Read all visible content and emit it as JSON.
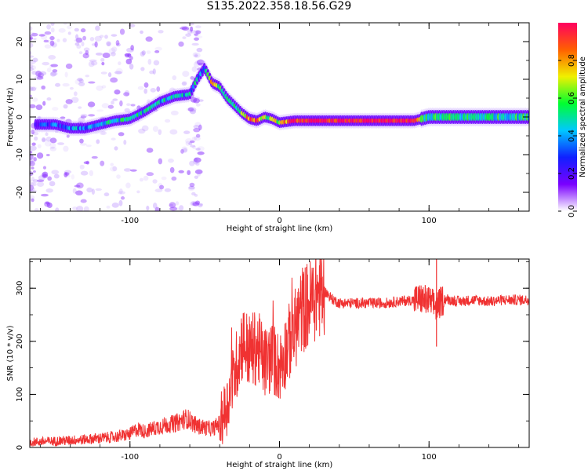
{
  "title": "S135.2022.358.18.56.G29",
  "colors": {
    "snr_line": "#f03232",
    "colormap": [
      "#ffffff",
      "#7a00ff",
      "#1020ff",
      "#00c8ff",
      "#00ff30",
      "#f0f000",
      "#ff6000",
      "#ff0060"
    ]
  },
  "chart_data": [
    {
      "type": "heatmap",
      "xlabel": "Height of straight line (km)",
      "ylabel": "Frequency (Hz)",
      "xlim": [
        -167,
        167
      ],
      "ylim": [
        -25,
        25
      ],
      "xticks": [
        -100,
        0,
        100
      ],
      "xtick_labels": [
        "-100",
        "0",
        "100"
      ],
      "yticks": [
        -20,
        -10,
        0,
        10,
        20
      ],
      "ytick_labels": [
        "-20",
        "-10",
        "0",
        "10",
        "20"
      ],
      "colorbar": {
        "label": "Normalized spectral amplitude",
        "range": [
          0,
          1
        ],
        "ticks": [
          0,
          0.2,
          0.4,
          0.6,
          0.8
        ],
        "tick_labels": [
          "0.0",
          "0.2",
          "0.4",
          "0.6",
          "0.8"
        ]
      },
      "ridge": {
        "x": [
          -160,
          -150,
          -140,
          -130,
          -120,
          -110,
          -100,
          -90,
          -80,
          -70,
          -60,
          -55,
          -50,
          -45,
          -40,
          -35,
          -30,
          -25,
          -20,
          -15,
          -10,
          -5,
          0,
          10,
          30,
          60,
          90,
          95,
          100,
          130,
          167
        ],
        "y": [
          -2,
          -2,
          -3,
          -3,
          -2,
          -1,
          -0.5,
          1.5,
          4,
          5.5,
          6,
          10,
          13,
          9,
          8,
          5,
          3,
          1,
          -0.5,
          -1,
          0,
          -0.5,
          -1.5,
          -1,
          -1,
          -1,
          -1,
          -0.5,
          0,
          0,
          0
        ],
        "amplitude": [
          0.25,
          0.3,
          0.35,
          0.4,
          0.4,
          0.45,
          0.5,
          0.45,
          0.45,
          0.45,
          0.4,
          0.45,
          0.35,
          0.9,
          0.55,
          0.5,
          0.55,
          0.6,
          0.85,
          0.9,
          0.6,
          0.6,
          0.7,
          0.95,
          0.98,
          0.97,
          0.97,
          0.6,
          0.5,
          0.5,
          0.5
        ]
      }
    },
    {
      "type": "line",
      "xlabel": "Height of straight line (km)",
      "ylabel": "SNR (10 * v/v)",
      "xlim": [
        -167,
        167
      ],
      "ylim": [
        0,
        355
      ],
      "xticks": [
        -100,
        0,
        100
      ],
      "xtick_labels": [
        "-100",
        "0",
        "100"
      ],
      "yticks": [
        0,
        100,
        200,
        300
      ],
      "ytick_labels": [
        "0",
        "100",
        "200",
        "300"
      ],
      "series": [
        {
          "x": [
            -167,
            -150,
            -130,
            -110,
            -100,
            -95,
            -90,
            -80,
            -70,
            -62,
            -55,
            -45,
            -40,
            -35,
            -30,
            -25,
            -20,
            -15,
            -10,
            -5,
            0,
            5,
            10,
            15,
            20,
            25,
            30,
            35,
            40,
            50,
            60,
            70,
            80,
            90,
            95,
            100,
            105,
            110,
            120,
            130,
            140,
            150,
            160,
            167
          ],
          "y": [
            10,
            12,
            15,
            20,
            25,
            35,
            30,
            40,
            45,
            55,
            40,
            35,
            45,
            80,
            140,
            200,
            180,
            190,
            160,
            170,
            150,
            190,
            220,
            260,
            270,
            290,
            295,
            280,
            272,
            272,
            272,
            272,
            275,
            278,
            280,
            275,
            265,
            280,
            275,
            278,
            275,
            278,
            278,
            278
          ]
        }
      ]
    }
  ]
}
